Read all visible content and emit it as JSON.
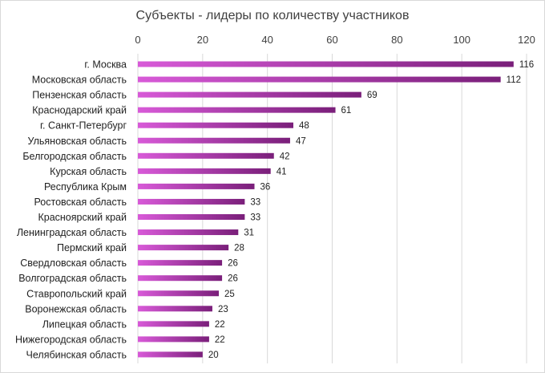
{
  "chart_data": {
    "type": "bar",
    "orientation": "horizontal",
    "title": "Субъекты - лидеры по количеству участников",
    "xlabel": "",
    "ylabel": "",
    "xlim": [
      0,
      120
    ],
    "x_ticks": [
      "0",
      "20",
      "40",
      "60",
      "80",
      "100",
      "120"
    ],
    "x_axis_position": "top",
    "grid": true,
    "legend": "none",
    "categories": [
      "г. Москва",
      "Московская область",
      "Пензенская область",
      "Краснодарский край",
      "г. Санкт-Петербург",
      "Ульяновская область",
      "Белгородская область",
      "Курская область",
      "Республика Крым",
      "Ростовская область",
      "Красноярский край",
      "Ленинградская область",
      "Пермский край",
      "Свердловская область",
      "Волгоградская область",
      "Ставропольский край",
      "Воронежская область",
      "Липецкая область",
      "Нижегородская область",
      "Челябинская область"
    ],
    "values": [
      116,
      112,
      69,
      61,
      48,
      47,
      42,
      41,
      36,
      33,
      33,
      31,
      28,
      26,
      26,
      25,
      23,
      22,
      22,
      20
    ],
    "colors": {
      "bar_light": "#d85ad8",
      "bar_dark": "#7a1f7a",
      "grid": "#d9d9d9",
      "text": "#404040"
    }
  }
}
